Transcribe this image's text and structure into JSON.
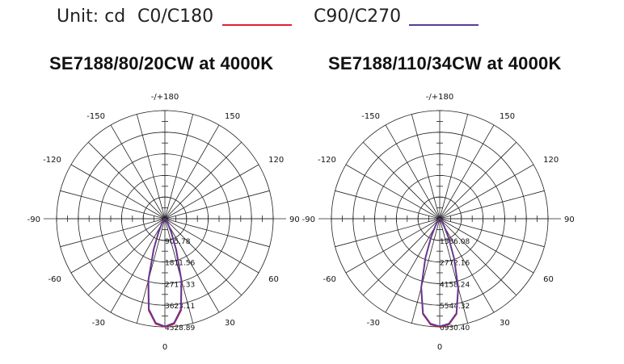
{
  "legend": {
    "unit": "Unit: cd",
    "c0_label": "C0/C180",
    "c90_label": "C90/C270",
    "c0_color": "#e0203a",
    "c90_color": "#5b3a9a"
  },
  "chart_data": [
    {
      "type": "polar-line",
      "title": "SE7188/80/20CW at 4000K",
      "angle_labels": [
        "-/+180",
        "150",
        "120",
        "90",
        "60",
        "30",
        "0",
        "-30",
        "-60",
        "-90",
        "-120",
        "-150"
      ],
      "radial_tick_labels": [
        "905.78",
        "1811.56",
        "2717.33",
        "3623.11",
        "4528.89"
      ],
      "r_max": 4528.89,
      "grid": true,
      "series": [
        {
          "name": "C0/C180",
          "color": "#e0203a",
          "angles": [
            0,
            5,
            10,
            15,
            20,
            25,
            30,
            40,
            60,
            90
          ],
          "values": [
            4529,
            4420,
            3900,
            2700,
            1400,
            650,
            300,
            120,
            40,
            0
          ]
        },
        {
          "name": "C90/C270",
          "color": "#5b3a9a",
          "angles": [
            0,
            5,
            10,
            15,
            20,
            25,
            30,
            40,
            60,
            90
          ],
          "values": [
            4510,
            4380,
            3850,
            2650,
            1350,
            620,
            280,
            110,
            35,
            0
          ]
        }
      ]
    },
    {
      "type": "polar-line",
      "title": "SE7188/110/34CW at 4000K",
      "angle_labels": [
        "-/+180",
        "150",
        "120",
        "90",
        "60",
        "30",
        "0",
        "-30",
        "-60",
        "-90",
        "-120",
        "-150"
      ],
      "radial_tick_labels": [
        "1386.08",
        "2772.16",
        "4158.24",
        "5544.32",
        "6930.40"
      ],
      "r_max": 6930.4,
      "grid": true,
      "series": [
        {
          "name": "C0/C180",
          "color": "#e0203a",
          "angles": [
            0,
            5,
            10,
            15,
            20,
            25,
            30,
            40,
            60,
            90
          ],
          "values": [
            6930,
            6800,
            6200,
            4600,
            2700,
            1350,
            600,
            200,
            60,
            0
          ]
        },
        {
          "name": "C90/C270",
          "color": "#5b3a9a",
          "angles": [
            0,
            5,
            10,
            15,
            20,
            25,
            30,
            40,
            60,
            90
          ],
          "values": [
            6900,
            6750,
            6150,
            4550,
            2650,
            1300,
            580,
            190,
            55,
            0
          ]
        }
      ]
    }
  ]
}
